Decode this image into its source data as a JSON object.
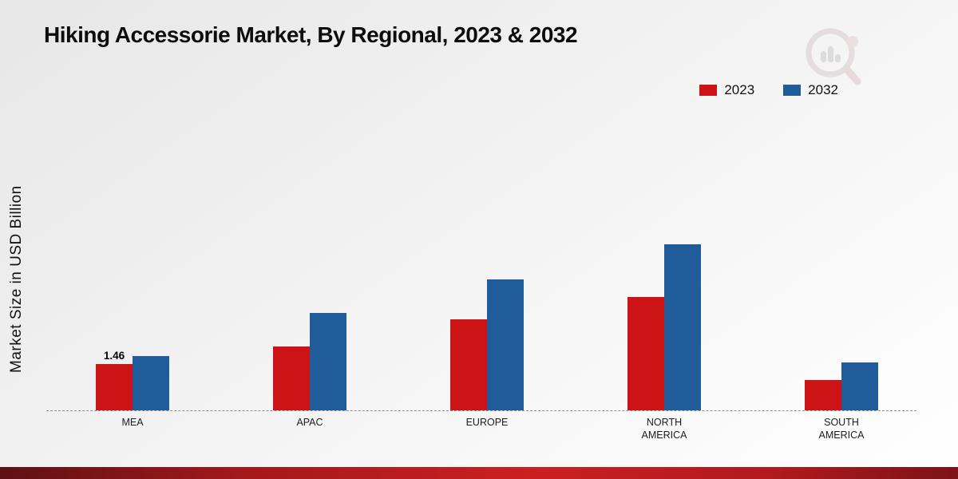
{
  "title": "Hiking Accessorie Market, By Regional, 2023 & 2032",
  "ylabel": "Market Size in USD Billion",
  "legend": [
    {
      "label": "2023",
      "color": "#cc1417"
    },
    {
      "label": "2032",
      "color": "#1f5c99"
    }
  ],
  "colors": {
    "series_2023": "#cc1417",
    "series_2032": "#1f5c99",
    "bottom_band": "#cb1f22",
    "baseline": "#8f8f8f"
  },
  "chart_data": {
    "type": "bar",
    "title": "Hiking Accessorie Market, By Regional, 2023 & 2032",
    "xlabel": "",
    "ylabel": "Market Size in USD Billion",
    "categories": [
      "MEA",
      "APAC",
      "EUROPE",
      "NORTH AMERICA",
      "SOUTH AMERICA"
    ],
    "series": [
      {
        "name": "2023",
        "color": "#cc1417",
        "values": [
          1.46,
          2.0,
          2.85,
          3.55,
          0.95
        ],
        "labels": [
          "1.46",
          "",
          "",
          "",
          ""
        ]
      },
      {
        "name": "2032",
        "color": "#1f5c99",
        "values": [
          1.7,
          3.05,
          4.1,
          5.2,
          1.5
        ],
        "labels": [
          "",
          "",
          "",
          "",
          ""
        ]
      }
    ],
    "ylim": [
      0,
      6
    ],
    "grid": false,
    "legend_position": "top-right",
    "baseline_style": "dashed"
  }
}
